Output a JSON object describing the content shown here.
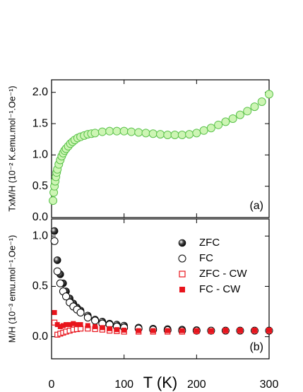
{
  "chart_data": [
    {
      "type": "scatter",
      "ylabel": "TxM/H (10⁻² K.emu.mol⁻¹.Oe⁻¹)",
      "annotation": "(a)",
      "xlim": [
        0,
        300
      ],
      "xticks": [
        0,
        100,
        200,
        300
      ],
      "ylim": [
        0,
        2.2
      ],
      "yticks": [
        {
          "value": 0,
          "label": "0.0"
        },
        0.5,
        {
          "value": 1,
          "label": "1.0"
        },
        1.5,
        {
          "value": 2,
          "label": "2.0"
        }
      ],
      "x": [
        2,
        3,
        4,
        5,
        6,
        7,
        8,
        10,
        12,
        14,
        16,
        18,
        20,
        23,
        26,
        29,
        32,
        36,
        40,
        45,
        50,
        55,
        60,
        70,
        80,
        90,
        100,
        110,
        120,
        130,
        140,
        150,
        160,
        170,
        180,
        190,
        200,
        210,
        220,
        230,
        240,
        250,
        260,
        270,
        280,
        290,
        300
      ],
      "series": [
        {
          "marker": "circle-open-filled",
          "color": "#5ac24a",
          "values": [
            0.27,
            0.4,
            0.5,
            0.58,
            0.65,
            0.72,
            0.77,
            0.85,
            0.92,
            0.98,
            1.03,
            1.07,
            1.1,
            1.14,
            1.18,
            1.21,
            1.24,
            1.27,
            1.29,
            1.31,
            1.33,
            1.34,
            1.35,
            1.37,
            1.38,
            1.38,
            1.38,
            1.37,
            1.36,
            1.35,
            1.34,
            1.33,
            1.32,
            1.32,
            1.32,
            1.33,
            1.35,
            1.39,
            1.43,
            1.48,
            1.53,
            1.58,
            1.64,
            1.7,
            1.77,
            1.85,
            1.97
          ]
        }
      ]
    },
    {
      "type": "scatter",
      "xlabel": "T (K)",
      "ylabel": "M/H (10⁻³ emu.mol⁻¹.Oe⁻¹)",
      "annotation": "(b)",
      "xlim": [
        0,
        300
      ],
      "xticks": [
        0,
        100,
        200,
        300
      ],
      "ylim": [
        -0.22,
        1.17
      ],
      "yticks": [
        {
          "value": 0,
          "label": "0.0"
        },
        0.5,
        {
          "value": 1,
          "label": "1.0"
        }
      ],
      "x": [
        4,
        8,
        12,
        16,
        20,
        25,
        30,
        35,
        40,
        50,
        60,
        70,
        80,
        90,
        100,
        120,
        140,
        160,
        180,
        200,
        220,
        240,
        260,
        280,
        300
      ],
      "series": [
        {
          "name": "ZFC",
          "marker": "ball",
          "color": "#000000",
          "values": [
            1.05,
            0.76,
            0.62,
            0.53,
            0.45,
            0.38,
            0.33,
            0.29,
            0.26,
            0.21,
            0.17,
            0.15,
            0.13,
            0.12,
            0.11,
            0.09,
            0.08,
            0.075,
            0.07,
            0.065,
            0.06,
            0.06,
            0.06,
            0.06,
            0.06
          ]
        },
        {
          "name": "FC",
          "marker": "circle-open",
          "color": "#000000",
          "values": [
            0.95,
            0.65,
            0.53,
            0.45,
            0.4,
            0.34,
            0.3,
            0.27,
            0.24,
            0.19,
            0.16,
            0.13,
            0.12,
            0.1,
            0.09,
            0.08,
            0.07,
            0.065,
            0.06,
            0.06,
            0.06,
            0.06,
            0.06,
            0.06,
            0.06
          ]
        },
        {
          "name": "ZFC - CW",
          "marker": "square-open",
          "color": "#e8141c",
          "values": [
            0.14,
            0.02,
            0.03,
            0.04,
            0.05,
            0.06,
            0.07,
            0.075,
            0.08,
            0.08,
            0.075,
            0.07,
            0.06,
            0.055,
            0.05,
            0.05,
            0.05,
            0.05,
            0.05,
            0.055,
            0.055,
            0.06,
            0.06,
            0.06,
            0.06
          ]
        },
        {
          "name": "FC - CW",
          "marker": "square-filled",
          "color": "#e8141c",
          "values": [
            0.24,
            0.12,
            0.1,
            0.11,
            0.12,
            0.12,
            0.13,
            0.12,
            0.12,
            0.11,
            0.1,
            0.09,
            0.08,
            0.07,
            0.065,
            0.06,
            0.06,
            0.06,
            0.06,
            0.06,
            0.06,
            0.065,
            0.065,
            0.065,
            0.065
          ]
        }
      ]
    }
  ]
}
